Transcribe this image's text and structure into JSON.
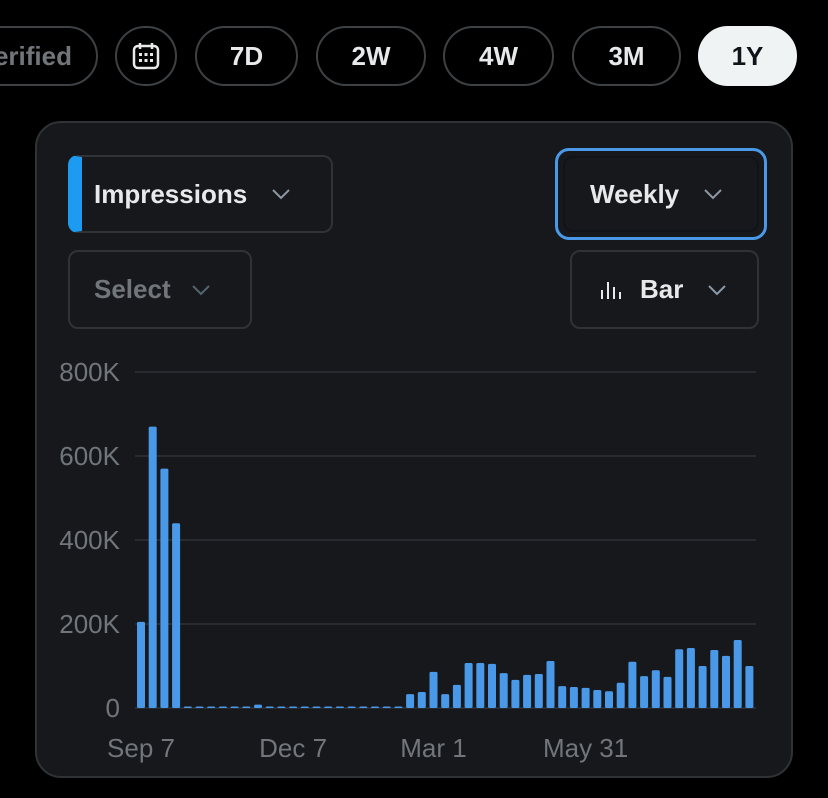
{
  "tabs": [
    "Verified",
    "7D",
    "2W",
    "4W",
    "3M",
    "1Y"
  ],
  "controls": {
    "metric": "Impressions",
    "period": "Weekly",
    "compare": "Select",
    "chart_style": "Bar"
  },
  "chart_data": {
    "type": "bar",
    "categories": [
      "Sep 7",
      null,
      null,
      null,
      null,
      null,
      null,
      null,
      null,
      null,
      null,
      null,
      null,
      "Dec 7",
      null,
      null,
      null,
      null,
      null,
      null,
      null,
      null,
      null,
      null,
      null,
      "Mar 1",
      null,
      null,
      null,
      null,
      null,
      null,
      null,
      null,
      null,
      null,
      null,
      null,
      "May 31",
      null,
      null,
      null,
      null,
      null,
      null,
      null,
      null,
      null,
      null,
      null,
      null,
      null,
      null
    ],
    "values": [
      205000,
      670000,
      570000,
      440000,
      1000,
      1000,
      1000,
      1000,
      1000,
      1000,
      8000,
      1000,
      1000,
      1000,
      1000,
      1000,
      1000,
      1000,
      1000,
      1000,
      1000,
      1000,
      3000,
      33000,
      38000,
      86000,
      33000,
      55000,
      107000,
      107000,
      105000,
      83000,
      67000,
      79000,
      81000,
      112000,
      52000,
      50000,
      48000,
      43000,
      40000,
      60000,
      110000,
      76000,
      90000,
      74000,
      140000,
      143000,
      100000,
      138000,
      124000,
      162000,
      100000
    ],
    "color": "#4a99e9",
    "ylim": [
      0,
      800000
    ],
    "yticks": [
      0,
      {
        "value": 200000,
        "label": "200K"
      },
      {
        "value": 400000,
        "label": "400K"
      },
      {
        "value": 600000,
        "label": "600K"
      },
      {
        "value": 800000,
        "label": "800K"
      }
    ],
    "grid": true
  }
}
